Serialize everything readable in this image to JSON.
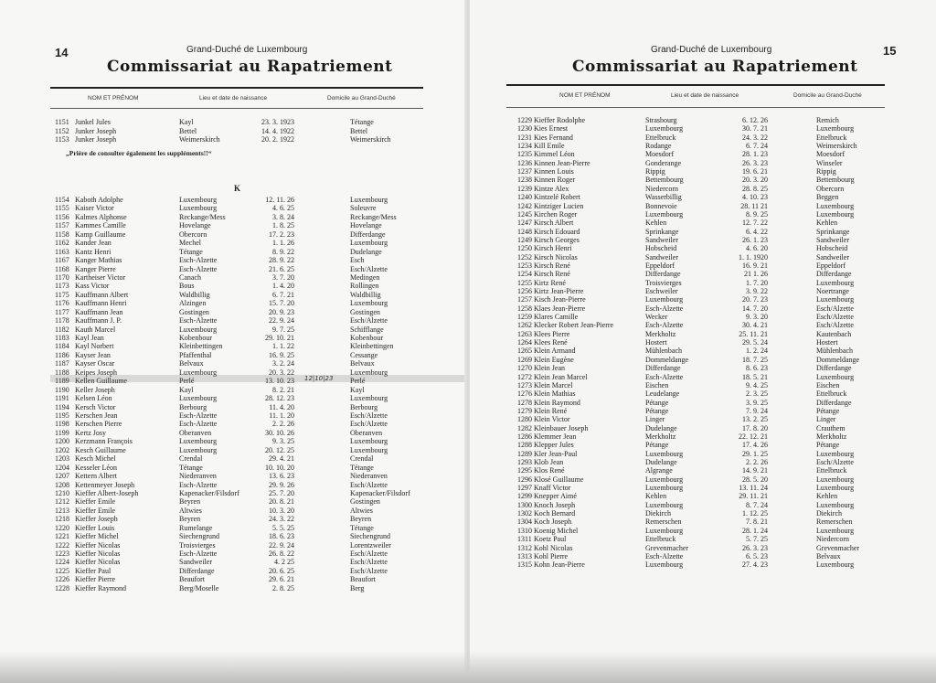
{
  "left_page": {
    "page_number": "14",
    "country": "Grand-Duché de Luxembourg",
    "title": "Commissariat au Rapatriement",
    "columns": [
      "NOM ET PRÉNOM",
      "Lieu et date de naissance",
      "Domicile au Grand-Duché"
    ],
    "entries_top": [
      [
        "1151",
        "Junkel Jules",
        "Kayl",
        "23. 3. 1923",
        "Tétange"
      ],
      [
        "1152",
        "Junker Joseph",
        "Bettel",
        "14. 4. 1922",
        "Bettel"
      ],
      [
        "1153",
        "Junker Joseph",
        "Weimerskirch",
        "20. 2. 1922",
        "Weimerskirch"
      ]
    ],
    "note": "„Prière de consulter également les suppléments!!“",
    "section_letter": "K",
    "entries": [
      [
        "1154",
        "Kaboth Adolphe",
        "Luxembourg",
        "12. 11. 26",
        "Luxembourg"
      ],
      [
        "1155",
        "Kaiser Victor",
        "Luxembourg",
        "4. 6. 25",
        "Soleuvre"
      ],
      [
        "1156",
        "Kalmes Alphonse",
        "Reckange/Mess",
        "3. 8. 24",
        "Reckange/Mess"
      ],
      [
        "1157",
        "Kammes Camille",
        "Hovelange",
        "1. 8. 25",
        "Hovelange"
      ],
      [
        "1158",
        "Kamp Guillaume",
        "Obercorn",
        "17. 2. 23",
        "Differdange"
      ],
      [
        "1162",
        "Kander Jean",
        "Mechel",
        "1. 1. 26",
        "Luxembourg"
      ],
      [
        "1163",
        "Kantz Henri",
        "Tétange",
        "8. 9. 22",
        "Dudelange"
      ],
      [
        "1167",
        "Kanger Mathias",
        "Esch-Alzette",
        "28. 9. 22",
        "Esch"
      ],
      [
        "1168",
        "Kanger Pierre",
        "Esch-Alzette",
        "21. 6. 25",
        "Esch/Alzette"
      ],
      [
        "1170",
        "Kartheiser Victor",
        "Canach",
        "3. 7. 20",
        "Medingen"
      ],
      [
        "1173",
        "Kass Victor",
        "Bous",
        "1. 4. 20",
        "Rollingen"
      ],
      [
        "1175",
        "Kauffmann Albert",
        "Waldbillig",
        "6. 7. 21",
        "Waldbillig"
      ],
      [
        "1176",
        "Kauffmann Henri",
        "Alzingen",
        "15. 7. 20",
        "Luxembourg"
      ],
      [
        "1177",
        "Kauffmann Jean",
        "Gostingen",
        "20. 9. 23",
        "Gostingen"
      ],
      [
        "1178",
        "Kauffmann J. P.",
        "Esch-Alzette",
        "22. 9. 24",
        "Esch/Alzette"
      ],
      [
        "1182",
        "Kauth Marcel",
        "Luxembourg",
        "9. 7. 25",
        "Schifflange"
      ],
      [
        "1183",
        "Kayl Jean",
        "Kobenbour",
        "29. 10. 21",
        "Kobenbour"
      ],
      [
        "1184",
        "Kayl Norbert",
        "Kleinbettingen",
        "1. 1. 22",
        "Kleinbettingen"
      ],
      [
        "1186",
        "Kayser Jean",
        "Pfaffenthal",
        "16. 9. 25",
        "Cessange"
      ],
      [
        "1187",
        "Kayser Oscar",
        "Belvaux",
        "3. 2. 24",
        "Belvaux"
      ],
      [
        "1188",
        "Keipes Joseph",
        "Luxembourg",
        "20. 3. 22",
        "Luxembourg"
      ],
      [
        "1189",
        "Kellen Guillaume",
        "Perlé",
        "13. 10. 23",
        "Perlé"
      ],
      [
        "1190",
        "Keller Joseph",
        "Kayl",
        "8. 2. 21",
        "Kayl"
      ],
      [
        "1191",
        "Kelsen Léon",
        "Luxembourg",
        "28. 12. 23",
        "Luxembourg"
      ],
      [
        "1194",
        "Kersch Victor",
        "Berbourg",
        "11. 4. 20",
        "Berbourg"
      ],
      [
        "1195",
        "Kerschen Jean",
        "Esch-Alzette",
        "11. 1. 20",
        "Esch/Alzette"
      ],
      [
        "1198",
        "Kerschen Pierre",
        "Esch-Alzette",
        "2. 2. 26",
        "Esch/Alzette"
      ],
      [
        "1199",
        "Kertz Josy",
        "Oberanven",
        "30. 10. 26",
        "Oberanven"
      ],
      [
        "1200",
        "Kerzmann François",
        "Luxembourg",
        "9. 3. 25",
        "Luxembourg"
      ],
      [
        "1202",
        "Kesch Guillaume",
        "Luxembourg",
        "20. 12. 25",
        "Luxembourg"
      ],
      [
        "1203",
        "Kesch Michel",
        "Crendal",
        "29. 4. 21",
        "Crendal"
      ],
      [
        "1204",
        "Kesseler Léon",
        "Tétange",
        "10. 10. 20",
        "Tétange"
      ],
      [
        "1207",
        "Kettern Albert",
        "Niederanven",
        "13. 6. 23",
        "Niederanven"
      ],
      [
        "1208",
        "Kettenmeyer Joseph",
        "Esch-Alzette",
        "29. 9. 26",
        "Esch/Alzette"
      ],
      [
        "1210",
        "Kieffer Albert-Joseph",
        "Kapenacker/Filsdorf",
        "25. 7. 20",
        "Kapenacker/Filsdorf"
      ],
      [
        "1212",
        "Kieffer Emile",
        "Beyren",
        "20. 8. 21",
        "Gostingen"
      ],
      [
        "1213",
        "Kieffer Emile",
        "Altwies",
        "10. 3. 20",
        "Altwies"
      ],
      [
        "1218",
        "Kieffer Joseph",
        "Beyren",
        "24. 3. 22",
        "Beyren"
      ],
      [
        "1220",
        "Kieffer Louis",
        "Rumelange",
        "5. 5. 25",
        "Tétange"
      ],
      [
        "1221",
        "Kieffer Michel",
        "Siechengrund",
        "18. 6. 23",
        "Siechengrund"
      ],
      [
        "1222",
        "Kieffer Nicolas",
        "Troisvierges",
        "22. 9. 24",
        "Lorentzweiler"
      ],
      [
        "1223",
        "Kieffer Nicolas",
        "Esch-Alzette",
        "26. 8. 22",
        "Esch/Alzette"
      ],
      [
        "1224",
        "Kieffer Nicolas",
        "Sandweiler",
        "4. 2 25",
        "Esch/Alzette"
      ],
      [
        "1225",
        "Kieffer Paul",
        "Differdange",
        "20. 6. 25",
        "Esch/Alzette"
      ],
      [
        "1226",
        "Kieffer Pierre",
        "Beaufort",
        "29. 6. 21",
        "Beaufort"
      ],
      [
        "1228",
        "Kieffer Raymond",
        "Berg/Moselle",
        "2. 8. 25",
        "Berg"
      ]
    ],
    "handwritten_annotation": "12|10|23"
  },
  "right_page": {
    "page_number": "15",
    "country": "Grand-Duché de Luxembourg",
    "title": "Commissariat au Rapatriement",
    "columns": [
      "NOM ET PRÉNOM",
      "Lieu et date de naissance",
      "Domicile au Grand-Duché"
    ],
    "entries": [
      [
        "1229",
        "Kieffer Rodolphe",
        "Strasbourg",
        "6. 12. 26",
        "Remich"
      ],
      [
        "1230",
        "Kies Ernest",
        "Luxembourg",
        "30. 7. 21",
        "Luxembourg"
      ],
      [
        "1231",
        "Kies Fernand",
        "Ettelbruck",
        "24. 3. 22",
        "Ettelbruck"
      ],
      [
        "1234",
        "Kill Emile",
        "Rodange",
        "6. 7. 24",
        "Weimerskirch"
      ],
      [
        "1235",
        "Kimmel Léon",
        "Moesdorf",
        "28. 1. 23",
        "Moesdorf"
      ],
      [
        "1236",
        "Kinnen Jean-Pierre",
        "Gonderange",
        "26. 3. 23",
        "Winseler"
      ],
      [
        "1237",
        "Kinnen Louis",
        "Rippig",
        "19. 6. 21",
        "Rippig"
      ],
      [
        "1238",
        "Kinnen Roger",
        "Bettembourg",
        "20. 3. 20",
        "Bettembourg"
      ],
      [
        "1239",
        "Kintze Alex",
        "Niedercorn",
        "28. 8. 25",
        "Obercorn"
      ],
      [
        "1240",
        "Kintzelé Robert",
        "Wasserbillig",
        "4. 10. 23",
        "Beggen"
      ],
      [
        "1242",
        "Kintziger Lucien",
        "Bonnevoie",
        "28. 11 21",
        "Luxembourg"
      ],
      [
        "1245",
        "Kirchen Roger",
        "Luxembourg",
        "8. 9. 25",
        "Luxembourg"
      ],
      [
        "1247",
        "Kirsch Albert",
        "Kehlen",
        "12. 7. 22",
        "Kehlen"
      ],
      [
        "1248",
        "Kirsch Edouard",
        "Sprinkange",
        "6. 4. 22",
        "Sprinkange"
      ],
      [
        "1249",
        "Kirsch Georges",
        "Sandweiler",
        "26. 1. 23",
        "Sandweiler"
      ],
      [
        "1250",
        "Kirsch Henri",
        "Hobscheid",
        "4. 6. 20",
        "Hobscheid"
      ],
      [
        "1252",
        "Kirsch Nicolas",
        "Sandweiler",
        "1. 1. 1920",
        "Sandweiler"
      ],
      [
        "1253",
        "Kirsch René",
        "Eppeldorf",
        "16. 9. 21",
        "Eppeldorf"
      ],
      [
        "1254",
        "Kirsch René",
        "Differdange",
        "21 1. 26",
        "Differdange"
      ],
      [
        "1255",
        "Kirtz René",
        "Troisvierges",
        "1. 7. 20",
        "Luxembourg"
      ],
      [
        "1256",
        "Kirtz Jean-Pierre",
        "Eschweiler",
        "3. 9. 22",
        "Noertrange"
      ],
      [
        "1257",
        "Kisch Jean-Pierre",
        "Luxembourg",
        "20. 7. 23",
        "Luxembourg"
      ],
      [
        "1258",
        "Klaes Jean-Pierre",
        "Esch-Alzette",
        "14. 7. 20",
        "Esch/Alzette"
      ],
      [
        "1259",
        "Klares Camille",
        "Wecker",
        "9. 3. 20",
        "Esch/Alzette"
      ],
      [
        "1262",
        "Klecker Robert Jean-Pierre",
        "Esch-Alzette",
        "30. 4. 21",
        "Esch/Alzette"
      ],
      [
        "1263",
        "Klees Pierre",
        "Merkholtz",
        "25. 11. 21",
        "Kautenbach"
      ],
      [
        "1264",
        "Klees René",
        "Hostert",
        "29. 5. 24",
        "Hostert"
      ],
      [
        "1265",
        "Klein Armand",
        "Mühlenbach",
        "1. 2. 24",
        "Mühlenbach"
      ],
      [
        "1269",
        "Klein Eugène",
        "Dommeldange",
        "18. 7. 25",
        "Dommeldange"
      ],
      [
        "1270",
        "Klein Jean",
        "Differdange",
        "8. 6. 23",
        "Differdange"
      ],
      [
        "1272",
        "Klein Jean Marcel",
        "Esch-Alzette",
        "18. 5. 21",
        "Luxembourg"
      ],
      [
        "1273",
        "Klein Marcel",
        "Eischen",
        "9. 4. 25",
        "Eischen"
      ],
      [
        "1276",
        "Klein Mathias",
        "Leudelange",
        "2. 3. 25",
        "Ettelbruck"
      ],
      [
        "1278",
        "Klein Raymond",
        "Pétange",
        "3. 9. 25",
        "Differdange"
      ],
      [
        "1279",
        "Klein René",
        "Pétange",
        "7. 9. 24",
        "Pétange"
      ],
      [
        "1280",
        "Klein Victor",
        "Linger",
        "13. 2. 25",
        "Linger"
      ],
      [
        "1282",
        "Kleinbauer Joseph",
        "Dudelange",
        "17. 8. 20",
        "Crauthem"
      ],
      [
        "1286",
        "Klemmer Jean",
        "Merkholtz",
        "22. 12. 21",
        "Merkholtz"
      ],
      [
        "1288",
        "Klepper Jules",
        "Pétange",
        "17. 4. 26",
        "Pétange"
      ],
      [
        "1289",
        "Kler Jean-Paul",
        "Luxembourg",
        "29. 1. 25",
        "Luxembourg"
      ],
      [
        "1293",
        "Klob Jean",
        "Dudelange",
        "2. 2. 26",
        "Esch/Alzette"
      ],
      [
        "1295",
        "Klos René",
        "Algrange",
        "14. 9. 21",
        "Ettelbruck"
      ],
      [
        "1296",
        "Klosé Guillaume",
        "Luxembourg",
        "28. 5. 20",
        "Luxembourg"
      ],
      [
        "1297",
        "Knaff Victor",
        "Luxembourg",
        "13. 11. 24",
        "Luxembourg"
      ],
      [
        "1299",
        "Knepper Aimé",
        "Kehlen",
        "29. 11. 21",
        "Kehlen"
      ],
      [
        "1300",
        "Knoch Joseph",
        "Luxembourg",
        "8. 7. 24",
        "Luxembourg"
      ],
      [
        "1302",
        "Koch Bernard",
        "Diekirch",
        "1. 12. 25",
        "Diekirch"
      ],
      [
        "1304",
        "Koch Joseph",
        "Remerschen",
        "7. 8. 21",
        "Remerschen"
      ],
      [
        "1310",
        "Koenig Michel",
        "Luxembourg",
        "28. 1. 24",
        "Luxembourg"
      ],
      [
        "1311",
        "Koetz Paul",
        "Ettelbruck",
        "5. 7. 25",
        "Niedercorn"
      ],
      [
        "1312",
        "Kohl Nicolas",
        "Grevenmacher",
        "26. 3. 23",
        "Grevenmacher"
      ],
      [
        "1313",
        "Kohl Pierre",
        "Esch-Alzette",
        "6. 5. 23",
        "Belvaux"
      ],
      [
        "1315",
        "Kohn Jean-Pierre",
        "Luxembourg",
        "27. 4. 23",
        "Luxembourg"
      ]
    ]
  }
}
